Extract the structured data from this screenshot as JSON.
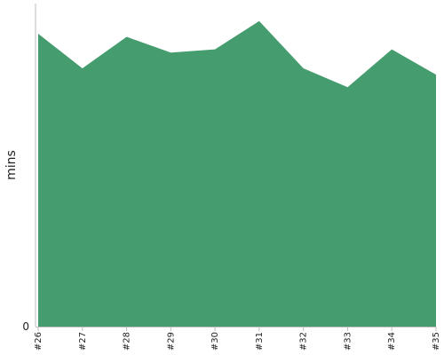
{
  "chart_data": {
    "type": "area",
    "ylabel": "mins",
    "xlabel": "",
    "categories": [
      "#26",
      "#27",
      "#28",
      "#29",
      "#30",
      "#31",
      "#32",
      "#33",
      "#34",
      "#35"
    ],
    "series": [
      {
        "values": [
          9.3,
          8.2,
          9.2,
          8.7,
          8.8,
          9.7,
          8.2,
          7.6,
          8.8,
          8.0
        ]
      }
    ],
    "ylim": [
      0,
      10.2
    ],
    "y_tick_labels": [
      {
        "value": 0,
        "label": "0"
      }
    ],
    "grid": false,
    "colors": {
      "area": "#459c6e",
      "axis": "#bdbdbd",
      "tick": "#222222"
    }
  }
}
